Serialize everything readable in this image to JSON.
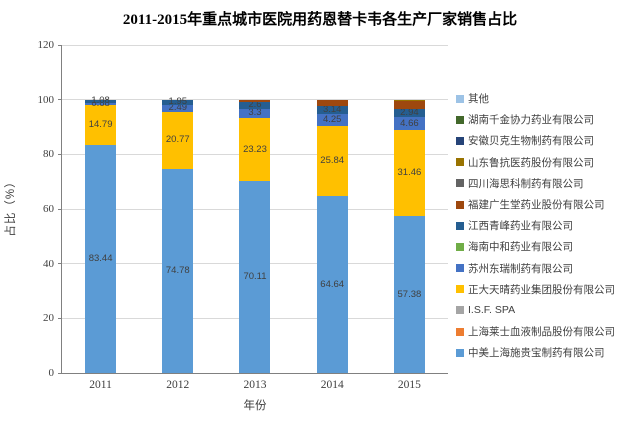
{
  "chart_data": {
    "type": "bar",
    "subtype": "stacked-percent",
    "title": "2011-2015年重点城市医院用药恩替卡韦各生产厂家销售占比",
    "xlabel": "年份",
    "ylabel": "占比（%）",
    "ylim": [
      0,
      120
    ],
    "ytick_labels": [
      "0",
      "20",
      "40",
      "60",
      "80",
      "100",
      "120"
    ],
    "grid": "horizontal",
    "legend_position": "right",
    "categories": [
      "2011",
      "2012",
      "2013",
      "2014",
      "2015"
    ],
    "series_note": "listed in legend order top-to-bottom; bars stack in reverse (last item at bottom)",
    "series": [
      {
        "name": "其他",
        "color": "#9DC3E6",
        "values": [
          0,
          0,
          0,
          0,
          0
        ],
        "labels": [
          "",
          "",
          "",
          "",
          ""
        ]
      },
      {
        "name": "湖南千金协力药业有限公司",
        "color": "#43682B",
        "values": [
          0,
          0,
          0,
          0,
          0
        ],
        "labels": [
          "",
          "",
          "",
          "",
          ""
        ]
      },
      {
        "name": "安徽贝克生物制药有限公司",
        "color": "#264478",
        "values": [
          0,
          0,
          0,
          0,
          0
        ],
        "labels": [
          "",
          "",
          "",
          "",
          ""
        ]
      },
      {
        "name": "山东鲁抗医药股份有限公司",
        "color": "#997300",
        "values": [
          0,
          0,
          0,
          0,
          0.66
        ],
        "labels": [
          "",
          "",
          "",
          "",
          ""
        ]
      },
      {
        "name": "四川海思科制药有限公司",
        "color": "#636363",
        "values": [
          0,
          0,
          0,
          0,
          0
        ],
        "labels": [
          "",
          "",
          "",
          "",
          ""
        ]
      },
      {
        "name": "福建广生堂药业股份有限公司",
        "color": "#9E480E",
        "values": [
          0,
          0,
          0.76,
          2.13,
          2.9
        ],
        "labels": [
          "",
          "",
          "",
          "",
          ""
        ]
      },
      {
        "name": "江西青峰药业有限公司",
        "color": "#255E91",
        "values": [
          1.08,
          1.95,
          2.6,
          3.14,
          2.94
        ],
        "labels": [
          "1.08",
          "1.95",
          "2.6",
          "3.14",
          "2.94"
        ]
      },
      {
        "name": "海南中和药业有限公司",
        "color": "#70AD47",
        "values": [
          0,
          0,
          0,
          0,
          0
        ],
        "labels": [
          "",
          "",
          "",
          "",
          ""
        ]
      },
      {
        "name": "苏州东瑞制药有限公司",
        "color": "#4472C4",
        "values": [
          0.68,
          2.49,
          3.3,
          4.25,
          4.66
        ],
        "labels": [
          "0.68",
          "2.49",
          "3.3",
          "4.25",
          "4.66"
        ]
      },
      {
        "name": "正大天晴药业集团股份有限公司",
        "color": "#FFC000",
        "values": [
          14.79,
          20.77,
          23.23,
          25.84,
          31.46
        ],
        "labels": [
          "14.79",
          "20.77",
          "23.23",
          "25.84",
          "31.46"
        ]
      },
      {
        "name": "I.S.F. SPA",
        "color": "#A5A5A5",
        "values": [
          0,
          0,
          0,
          0,
          0
        ],
        "labels": [
          "",
          "",
          "",
          "",
          ""
        ]
      },
      {
        "name": "上海莱士血液制品股份有限公司",
        "color": "#ED7D31",
        "values": [
          0,
          0,
          0,
          0,
          0
        ],
        "labels": [
          "",
          "",
          "",
          "",
          ""
        ]
      },
      {
        "name": "中美上海施贵宝制药有限公司",
        "color": "#5B9BD5",
        "values": [
          83.44,
          74.78,
          70.11,
          64.64,
          57.38
        ],
        "labels": [
          "83.44",
          "74.78",
          "70.11",
          "64.64",
          "57.38"
        ]
      }
    ],
    "colors": {
      "gridline": "#D9D9D9",
      "axis": "#808080",
      "segment_label": "#404040",
      "tick_label": "#404040"
    }
  }
}
